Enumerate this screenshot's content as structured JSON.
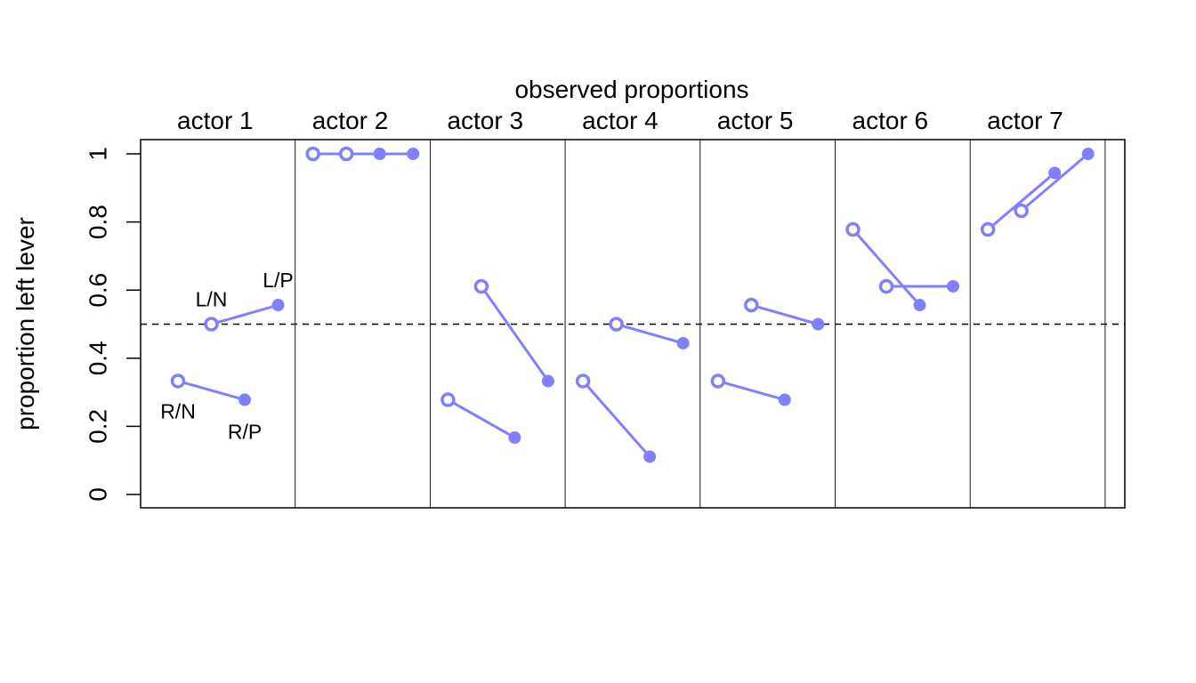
{
  "chart_data": {
    "type": "scatter",
    "title": "observed proportions",
    "ylabel": "proportion left lever",
    "ylim": [
      0,
      1
    ],
    "yticks": [
      0,
      0.2,
      0.4,
      0.6,
      0.8,
      1
    ],
    "ytick_labels": [
      "0",
      "0.2",
      "0.4",
      "0.6",
      "0.8",
      "1"
    ],
    "reference_line": 0.5,
    "conditions": [
      "R/N",
      "L/N",
      "R/P",
      "L/P"
    ],
    "condition_labels_on_actor": 1,
    "actors": [
      {
        "label": "actor 1",
        "values": [
          0.333,
          0.5,
          0.278,
          0.556
        ]
      },
      {
        "label": "actor 2",
        "values": [
          1,
          1,
          1,
          1
        ]
      },
      {
        "label": "actor 3",
        "values": [
          0.278,
          0.611,
          0.167,
          0.333
        ]
      },
      {
        "label": "actor 4",
        "values": [
          0.333,
          0.5,
          0.111,
          0.444
        ]
      },
      {
        "label": "actor 5",
        "values": [
          0.333,
          0.556,
          0.278,
          0.5
        ]
      },
      {
        "label": "actor 6",
        "values": [
          0.778,
          0.611,
          0.556,
          0.611
        ]
      },
      {
        "label": "actor 7",
        "values": [
          0.778,
          0.833,
          0.944,
          1
        ]
      }
    ],
    "marker_style": {
      "open": [
        "R/N",
        "L/N"
      ],
      "filled": [
        "R/P",
        "L/P"
      ]
    },
    "colors": {
      "series": "#8080ff",
      "frame": "#000000"
    },
    "grid": false
  }
}
